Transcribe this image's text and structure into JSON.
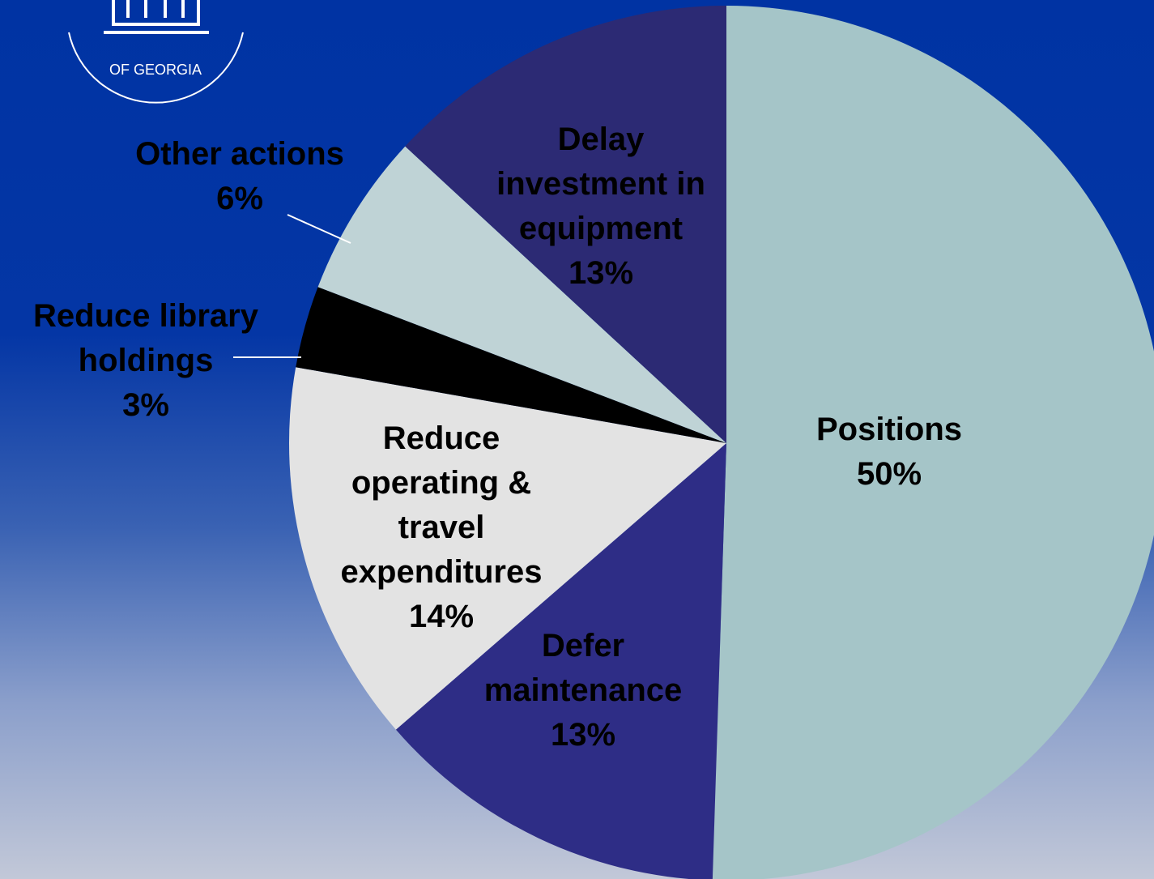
{
  "chart_data": {
    "type": "pie",
    "categories": [
      "Positions",
      "Defer maintenance",
      "Reduce operating & travel expenditures",
      "Reduce library holdings",
      "Other actions",
      "Delay investment in equipment"
    ],
    "values": [
      50,
      13,
      14,
      3,
      6,
      13
    ],
    "value_labels": [
      "50%",
      "13%",
      "14%",
      "3%",
      "6%",
      "13%"
    ],
    "colors": [
      "#a5c5c8",
      "#2e2d86",
      "#e3e3e3",
      "#000000",
      "#bfd3d6",
      "#2c2a74"
    ]
  },
  "logo": {
    "text": "OF GEORGIA"
  }
}
